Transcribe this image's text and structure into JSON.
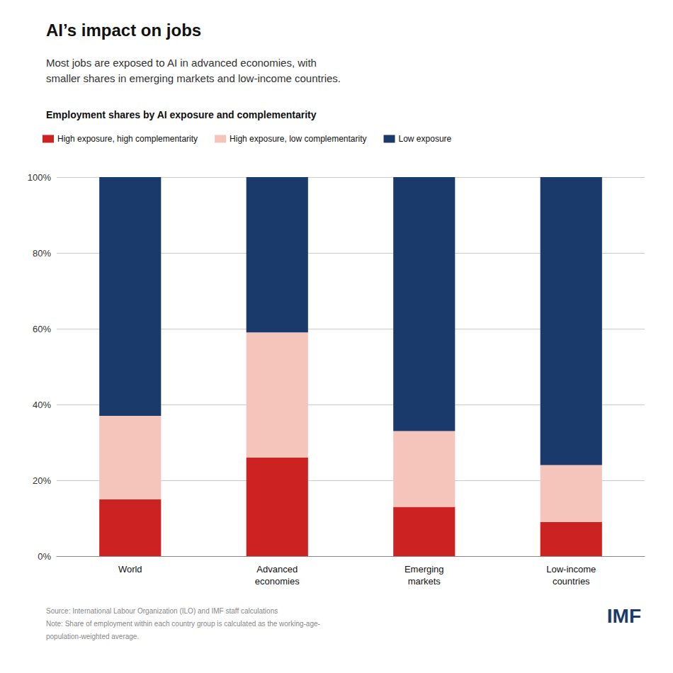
{
  "chart_data": {
    "type": "bar",
    "stacked": true,
    "title": "AI’s impact on jobs",
    "subtitle": "Most jobs are exposed to AI in advanced economies, with\nsmaller shares in emerging markets and low-income countries.",
    "chart_title": "Employment shares by AI exposure and complementarity",
    "categories": [
      "World",
      "Advanced\neconomies",
      "Emerging\nmarkets",
      "Low-income\ncountries"
    ],
    "series": [
      {
        "name": "High exposure, high complementarity",
        "color": "#cc2222",
        "values": [
          15,
          26,
          13,
          9
        ]
      },
      {
        "name": "High exposure, low complementarity",
        "color": "#f5c5bc",
        "values": [
          22,
          33,
          20,
          15
        ]
      },
      {
        "name": "Low exposure",
        "color": "#1a3a6b",
        "values": [
          63,
          41,
          67,
          76
        ]
      }
    ],
    "ylim": [
      0,
      100
    ],
    "yticks": [
      {
        "value": 0,
        "label": "0%"
      },
      {
        "value": 20,
        "label": "20%"
      },
      {
        "value": 40,
        "label": "40%"
      },
      {
        "value": 60,
        "label": "60%"
      },
      {
        "value": 80,
        "label": "80%"
      },
      {
        "value": 100,
        "label": "100%"
      }
    ],
    "grid": true,
    "legend": "top-left",
    "notes": [
      "Source: International Labour Organization (ILO) and IMF staff calculations",
      "Note: Share of employment within each country group is calculated as the working-age-",
      "population-weighted average."
    ],
    "annotations": [
      "IMF"
    ]
  }
}
